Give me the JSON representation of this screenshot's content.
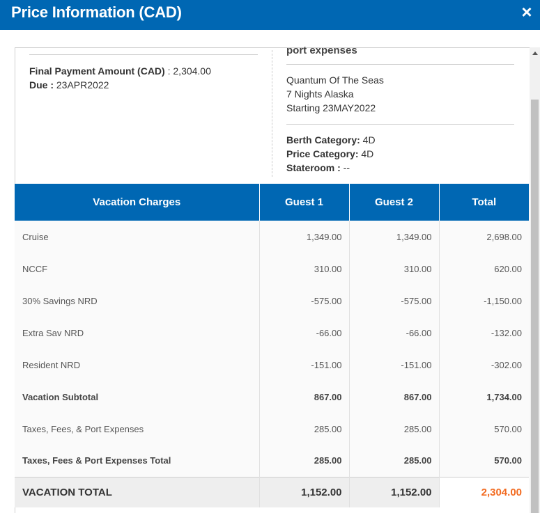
{
  "dialog": {
    "title": "Price Information (CAD)",
    "close_icon": "×"
  },
  "payment": {
    "final_label": "Final Payment Amount (CAD)",
    "final_value": " : 2,304.00",
    "due_label": "Due :",
    "due_value": " 23APR2022"
  },
  "voyage": {
    "heading": "port expenses",
    "ship": "Quantum Of The Seas",
    "itinerary": "7 Nights Alaska",
    "start": "Starting 23MAY2022",
    "berth_label": "Berth Category:",
    "berth_value": " 4D",
    "price_label": "Price Category:",
    "price_value": " 4D",
    "stateroom_label": "Stateroom :",
    "stateroom_value": " --"
  },
  "table": {
    "headers": [
      "Vacation Charges",
      "Guest 1",
      "Guest 2",
      "Total"
    ],
    "rows": [
      {
        "label": "Cruise",
        "g1": "1,349.00",
        "g2": "1,349.00",
        "total": "2,698.00"
      },
      {
        "label": "NCCF",
        "g1": "310.00",
        "g2": "310.00",
        "total": "620.00"
      },
      {
        "label": "30% Savings NRD",
        "g1": "-575.00",
        "g2": "-575.00",
        "total": "-1,150.00"
      },
      {
        "label": "Extra Sav NRD",
        "g1": "-66.00",
        "g2": "-66.00",
        "total": "-132.00"
      },
      {
        "label": "Resident NRD",
        "g1": "-151.00",
        "g2": "-151.00",
        "total": "-302.00"
      },
      {
        "label": "Vacation Subtotal",
        "g1": "867.00",
        "g2": "867.00",
        "total": "1,734.00"
      },
      {
        "label": "Taxes, Fees, & Port Expenses",
        "g1": "285.00",
        "g2": "285.00",
        "total": "570.00"
      },
      {
        "label": "Taxes, Fees & Port Expenses Total",
        "g1": "285.00",
        "g2": "285.00",
        "total": "570.00"
      }
    ],
    "total_row": {
      "label": "VACATION TOTAL",
      "g1": "1,152.00",
      "g2": "1,152.00",
      "total": "2,304.00"
    }
  },
  "colors": {
    "header_blue": "#0067b3",
    "total_orange": "#f26b21"
  }
}
